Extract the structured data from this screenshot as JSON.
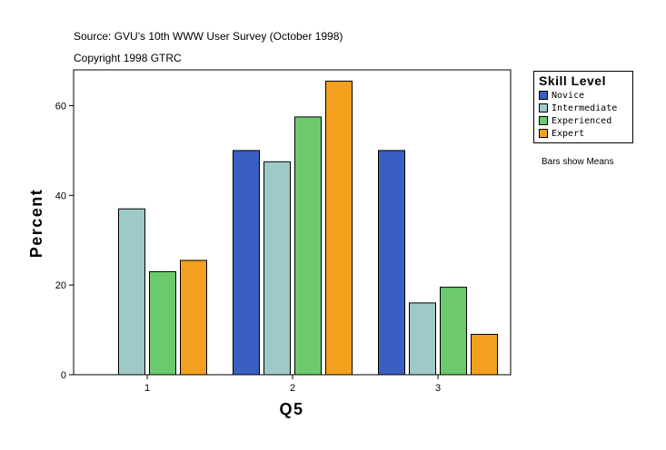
{
  "source_line": "Source: GVU's 10th WWW User Survey (October 1998)",
  "copyright_line": "Copyright 1998 GTRC",
  "note": "Bars show Means",
  "chart_data": {
    "type": "bar",
    "title": "",
    "xlabel": "Q5",
    "ylabel": "Percent",
    "categories": [
      "1",
      "2",
      "3"
    ],
    "ylim": [
      0,
      68
    ],
    "yticks": [
      0,
      20,
      40,
      60
    ],
    "grid": false,
    "legend_placement": "right",
    "legend_title": "Skill Level",
    "series": [
      {
        "name": "Novice",
        "color": "#3a5fc3",
        "values": [
          0,
          50,
          50
        ]
      },
      {
        "name": "Intermediate",
        "color": "#9ec9c9",
        "values": [
          37,
          47.5,
          16
        ]
      },
      {
        "name": "Experienced",
        "color": "#6cca6c",
        "values": [
          23,
          57.5,
          19.5
        ]
      },
      {
        "name": "Expert",
        "color": "#f2a01d",
        "values": [
          25.5,
          65.5,
          9
        ]
      }
    ]
  }
}
